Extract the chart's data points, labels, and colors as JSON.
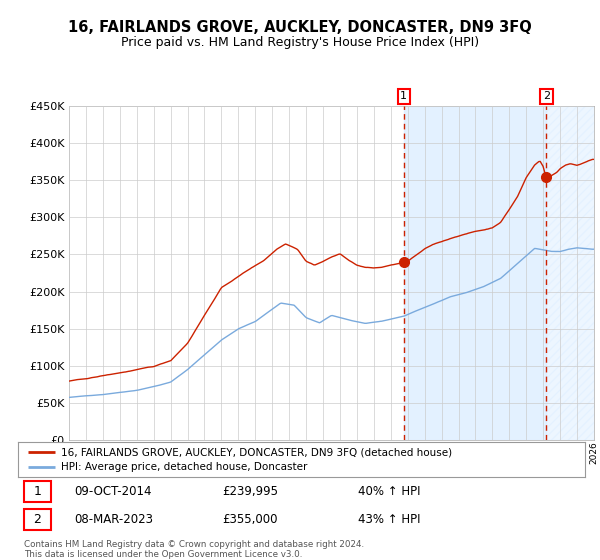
{
  "title": "16, FAIRLANDS GROVE, AUCKLEY, DONCASTER, DN9 3FQ",
  "subtitle": "Price paid vs. HM Land Registry's House Price Index (HPI)",
  "legend_line1": "16, FAIRLANDS GROVE, AUCKLEY, DONCASTER, DN9 3FQ (detached house)",
  "legend_line2": "HPI: Average price, detached house, Doncaster",
  "marker1_date": "09-OCT-2014",
  "marker1_price": 239995,
  "marker1_label": "40% ↑ HPI",
  "marker2_date": "08-MAR-2023",
  "marker2_price": 355000,
  "marker2_label": "43% ↑ HPI",
  "marker1_x": 2014.77,
  "marker2_x": 2023.18,
  "hpi_color": "#7aaadd",
  "property_color": "#cc2200",
  "background_color": "#ffffff",
  "grid_color": "#cccccc",
  "shade_color": "#ddeeff",
  "ylim": [
    0,
    450000
  ],
  "xlim": [
    1995,
    2026
  ],
  "yticks": [
    0,
    50000,
    100000,
    150000,
    200000,
    250000,
    300000,
    350000,
    400000,
    450000
  ],
  "footnote_line1": "Contains HM Land Registry data © Crown copyright and database right 2024.",
  "footnote_line2": "This data is licensed under the Open Government Licence v3.0.",
  "title_fontsize": 10.5,
  "subtitle_fontsize": 9
}
